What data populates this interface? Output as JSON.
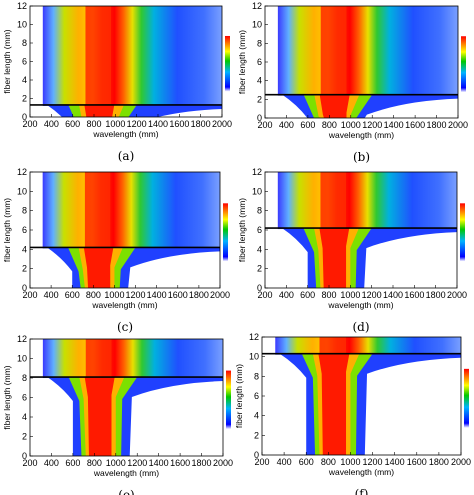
{
  "chart_data": [
    {
      "type": "heatmap",
      "panel": "(a)",
      "xlabel": "wavelength (mm)",
      "ylabel": "fiber length (mm)",
      "xlim": [
        200,
        2000
      ],
      "ylim": [
        0,
        12
      ],
      "xticks": [
        200,
        400,
        600,
        800,
        1000,
        1200,
        1400,
        1600,
        1800,
        2000
      ],
      "yticks": [
        0,
        2,
        4,
        6,
        8,
        10,
        12
      ],
      "marker_line_y": 1.3,
      "colorbar": "blue-green-yellow-red (unlabeled)"
    },
    {
      "type": "heatmap",
      "panel": "(b)",
      "xlabel": "wavelength (mm)",
      "ylabel": "fiber length (mm)",
      "xlim": [
        200,
        2000
      ],
      "ylim": [
        0,
        12
      ],
      "xticks": [
        200,
        400,
        600,
        800,
        1000,
        1200,
        1400,
        1600,
        1800,
        2000
      ],
      "yticks": [
        0,
        2,
        4,
        6,
        8,
        10,
        12
      ],
      "marker_line_y": 2.5,
      "colorbar": "blue-green-yellow-red (unlabeled)"
    },
    {
      "type": "heatmap",
      "panel": "(c)",
      "xlabel": "wavelength (mm)",
      "ylabel": "fiber length (mm)",
      "xlim": [
        200,
        2000
      ],
      "ylim": [
        0,
        12
      ],
      "xticks": [
        200,
        400,
        600,
        800,
        1000,
        1200,
        1400,
        1600,
        1800,
        2000
      ],
      "yticks": [
        0,
        2,
        4,
        6,
        8,
        10,
        12
      ],
      "marker_line_y": 4.2,
      "colorbar": "blue-green-yellow-red (unlabeled)"
    },
    {
      "type": "heatmap",
      "panel": "(d)",
      "xlabel": "wavelength (mm)",
      "ylabel": "fiber length (mm)",
      "xlim": [
        200,
        2000
      ],
      "ylim": [
        0,
        12
      ],
      "xticks": [
        200,
        400,
        600,
        800,
        1000,
        1200,
        1400,
        1600,
        1800,
        2000
      ],
      "yticks": [
        0,
        2,
        4,
        6,
        8,
        10,
        12
      ],
      "marker_line_y": 6.2,
      "colorbar": "blue-green-yellow-red (unlabeled)"
    },
    {
      "type": "heatmap",
      "panel": "(e)",
      "xlabel": "wavelength (mm)",
      "ylabel": "fiber length (mm)",
      "xlim": [
        200,
        2000
      ],
      "ylim": [
        0,
        12
      ],
      "xticks": [
        200,
        400,
        600,
        800,
        1000,
        1200,
        1400,
        1600,
        1800,
        2000
      ],
      "yticks": [
        0,
        2,
        4,
        6,
        8,
        10,
        12
      ],
      "marker_line_y": 8.1,
      "colorbar": "blue-green-yellow-red (unlabeled)"
    },
    {
      "type": "heatmap",
      "panel": "(f)",
      "xlabel": "wavelength (mm)",
      "ylabel": "fiber length (mm)",
      "xlim": [
        200,
        2000
      ],
      "ylim": [
        0,
        12
      ],
      "xticks": [
        200,
        400,
        600,
        800,
        1000,
        1200,
        1400,
        1600,
        1800,
        2000
      ],
      "yticks": [
        0,
        2,
        4,
        6,
        8,
        10,
        12
      ],
      "marker_line_y": 10.3,
      "colorbar": "blue-green-yellow-red (unlabeled)"
    }
  ]
}
